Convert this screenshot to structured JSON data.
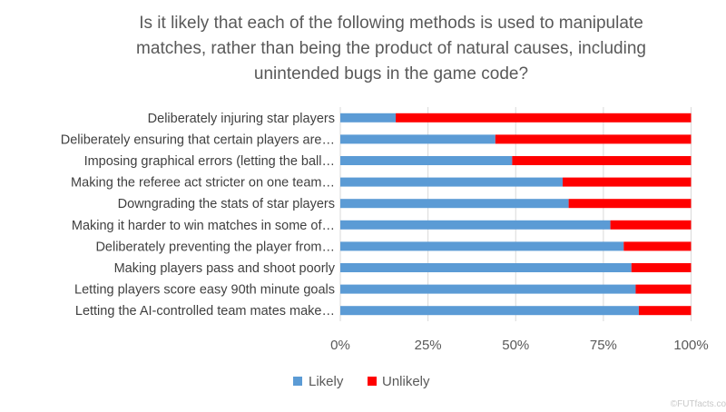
{
  "chart_data": {
    "type": "bar",
    "orientation": "horizontal",
    "stacked": "100%",
    "title": [
      "Is it likely that each of the following methods is used to manipulate",
      "matches, rather than being the product of natural causes, including",
      "unintended bugs in the game code?"
    ],
    "categories": [
      "Deliberately injuring star players",
      "Deliberately ensuring that certain players are…",
      "Imposing graphical errors (letting the ball…",
      "Making the referee act stricter on one team…",
      "Downgrading the stats of star players",
      "Making it harder to win matches in some of…",
      "Deliberately preventing the player from…",
      "Making players pass and shoot poorly",
      "Letting players score easy 90th minute goals",
      "Letting the AI-controlled team mates make…"
    ],
    "series": [
      {
        "name": "Likely",
        "color": "#5b9bd5",
        "values": [
          15.8,
          44.2,
          49.0,
          63.4,
          65.1,
          77.0,
          80.8,
          83.0,
          84.2,
          85.1
        ]
      },
      {
        "name": "Unlikely",
        "color": "#ff0000",
        "values": [
          84.2,
          55.8,
          51.0,
          36.6,
          34.9,
          23.0,
          19.2,
          17.0,
          15.8,
          14.9
        ]
      }
    ],
    "xlim": [
      0,
      100
    ],
    "xticks": [
      "0%",
      "25%",
      "50%",
      "75%",
      "100%"
    ],
    "grid": true,
    "legend": "bottom"
  },
  "watermark": "©FUTfacts.co"
}
